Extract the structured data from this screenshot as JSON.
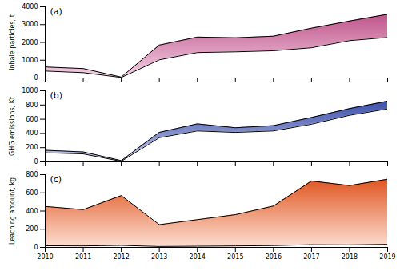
{
  "chart_data": [
    {
      "type": "area",
      "annotations": [
        "(a)"
      ],
      "y_label": "inhale particles, t",
      "x": [
        2010,
        2011,
        2012,
        2013,
        2014,
        2015,
        2016,
        2017,
        2018,
        2019
      ],
      "upper": [
        620,
        530,
        50,
        1850,
        2300,
        2260,
        2350,
        2800,
        3200,
        3580
      ],
      "lower": [
        390,
        300,
        30,
        1020,
        1430,
        1470,
        1530,
        1700,
        2100,
        2280
      ],
      "colors": [
        "#c0548a",
        "#f2d0e4"
      ],
      "xlim": [
        2010,
        2019
      ],
      "xticks": [
        2010,
        2011,
        2012,
        2013,
        2014,
        2015,
        2016,
        2017,
        2018,
        2019
      ],
      "ylim": [
        0,
        4000
      ],
      "yticks": [
        0,
        1000,
        2000,
        3000,
        4000
      ],
      "grid": false,
      "tick_labels": "y"
    },
    {
      "type": "area",
      "annotations": [
        "(b)"
      ],
      "y_label": "GHG emissions, Kt",
      "x": [
        2010,
        2011,
        2012,
        2013,
        2014,
        2015,
        2016,
        2017,
        2018,
        2019
      ],
      "upper": [
        163,
        140,
        18,
        415,
        535,
        480,
        510,
        625,
        750,
        855
      ],
      "lower": [
        128,
        112,
        8,
        340,
        435,
        415,
        435,
        530,
        655,
        745
      ],
      "colors": [
        "#3b4faa",
        "#c5cae9"
      ],
      "xlim": [
        2010,
        2019
      ],
      "xticks": [
        2010,
        2011,
        2012,
        2013,
        2014,
        2015,
        2016,
        2017,
        2018,
        2019
      ],
      "ylim": [
        0,
        1000
      ],
      "yticks": [
        0,
        200,
        400,
        600,
        800,
        1000
      ],
      "grid": false,
      "tick_labels": "y"
    },
    {
      "type": "area",
      "annotations": [
        "(c)"
      ],
      "y_label": "Leaching amount, kg",
      "x": [
        2010,
        2011,
        2012,
        2013,
        2014,
        2015,
        2016,
        2017,
        2018,
        2019
      ],
      "upper": [
        450,
        415,
        570,
        250,
        305,
        360,
        455,
        730,
        680,
        750
      ],
      "lower": [
        18,
        16,
        22,
        10,
        13,
        16,
        20,
        30,
        28,
        34
      ],
      "colors": [
        "#e05520",
        "#fcddd0"
      ],
      "xlim": [
        2010,
        2019
      ],
      "xticks": [
        2010,
        2011,
        2012,
        2013,
        2014,
        2015,
        2016,
        2017,
        2018,
        2019
      ],
      "ylim": [
        0,
        800
      ],
      "yticks": [
        0,
        200,
        400,
        600,
        800
      ],
      "grid": false
    }
  ]
}
